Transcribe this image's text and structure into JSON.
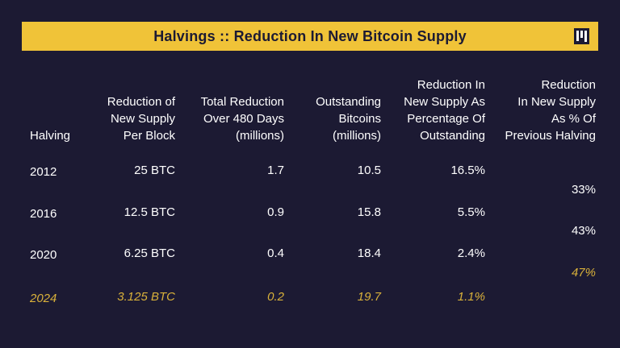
{
  "title": "Halvings :: Reduction In New Bitcoin Supply",
  "colors": {
    "background": "#1c1a33",
    "accent": "#f0c338",
    "highlight": "#d9b13a",
    "text": "#ffffff"
  },
  "logo_icon": "pantera-logo-icon",
  "headers": [
    "Halving",
    "Reduction of\nNew Supply\nPer Block",
    "Total Reduction\nOver 480 Days\n(millions)",
    "Outstanding\nBitcoins\n(millions)",
    "Reduction In\nNew Supply As\nPercentage Of\nOutstanding",
    "Reduction\nIn New Supply\nAs % Of\nPrevious Halving"
  ],
  "rows": [
    {
      "halving": "2012",
      "per_block": "25 BTC",
      "total": "1.7",
      "outstanding": "10.5",
      "pct": "16.5%"
    },
    {
      "halving": "2016",
      "per_block": "12.5 BTC",
      "total": "0.9",
      "outstanding": "15.8",
      "pct": "5.5%"
    },
    {
      "halving": "2020",
      "per_block": "6.25 BTC",
      "total": "0.4",
      "outstanding": "18.4",
      "pct": "2.4%"
    },
    {
      "halving": "2024",
      "per_block": "3.125 BTC",
      "total": "0.2",
      "outstanding": "19.7",
      "pct": "1.1%"
    }
  ],
  "prev_halving_pct": [
    "33%",
    "43%",
    "47%"
  ]
}
